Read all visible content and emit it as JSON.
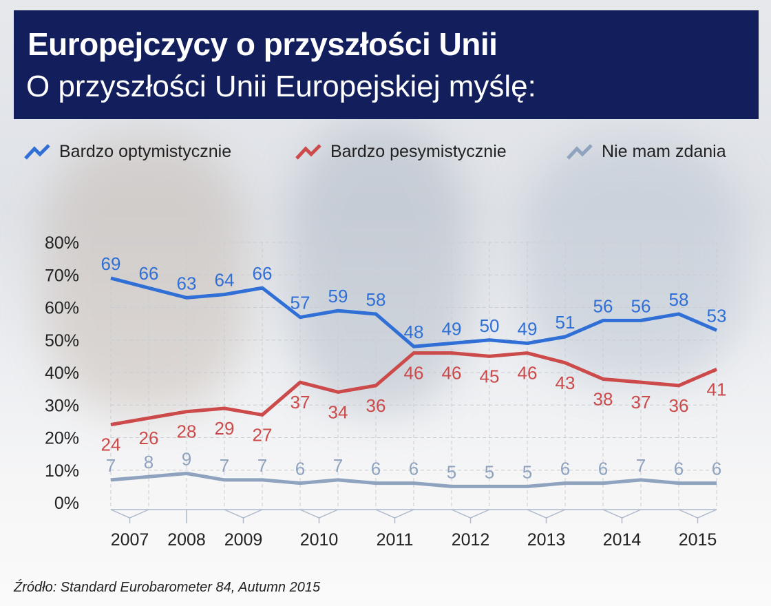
{
  "header": {
    "title": "Europejczycy o przyszłości Unii",
    "subtitle": "O przyszłości Unii Europejskiej myślę:"
  },
  "source": "Źródło: Standard Eurobarometer 84, Autumn 2015",
  "chart_data": {
    "type": "line",
    "title": "Europejczycy o przyszłości Unii",
    "subtitle": "O przyszłości Unii Europejskiej myślę:",
    "ylim": [
      0,
      80
    ],
    "yticks": [
      "0%",
      "10%",
      "20%",
      "30%",
      "40%",
      "50%",
      "60%",
      "70%",
      "80%"
    ],
    "grid": true,
    "legend_position": "top",
    "year_labels": [
      {
        "label": "2007",
        "points": [
          0,
          1
        ]
      },
      {
        "label": "2008",
        "points": [
          2,
          2
        ]
      },
      {
        "label": "2009",
        "points": [
          3,
          4
        ]
      },
      {
        "label": "2010",
        "points": [
          5,
          6
        ]
      },
      {
        "label": "2011",
        "points": [
          7,
          8
        ]
      },
      {
        "label": "2012",
        "points": [
          9,
          10
        ]
      },
      {
        "label": "2013",
        "points": [
          11,
          12
        ]
      },
      {
        "label": "2014",
        "points": [
          13,
          14
        ]
      },
      {
        "label": "2015",
        "points": [
          15,
          16
        ]
      }
    ],
    "series": [
      {
        "name": "Bardzo optymistycznie",
        "color": "#2f6fd6",
        "label_pos": "above",
        "values": [
          69,
          66,
          63,
          64,
          66,
          57,
          59,
          58,
          48,
          49,
          50,
          49,
          51,
          56,
          56,
          58,
          53
        ]
      },
      {
        "name": "Bardzo pesymistycznie",
        "color": "#cc4a4a",
        "label_pos": "below",
        "values": [
          24,
          26,
          28,
          29,
          27,
          37,
          34,
          36,
          46,
          46,
          45,
          46,
          43,
          38,
          37,
          36,
          41
        ]
      },
      {
        "name": "Nie mam zdania",
        "color": "#8fa3bf",
        "label_pos": "above",
        "values": [
          7,
          8,
          9,
          7,
          7,
          6,
          7,
          6,
          6,
          5,
          5,
          5,
          6,
          6,
          7,
          6,
          6
        ]
      }
    ]
  }
}
